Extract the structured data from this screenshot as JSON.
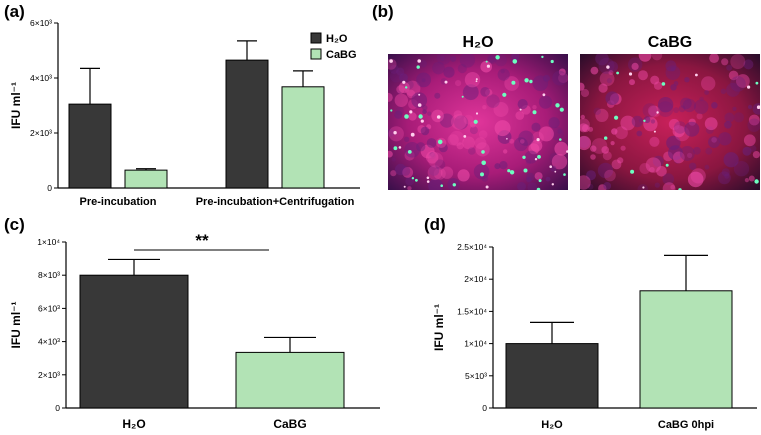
{
  "panels": {
    "a": "(a)",
    "b": "(b)",
    "c": "(c)",
    "d": "(d)"
  },
  "micrographs": {
    "left_title": "H₂O",
    "right_title": "CaBG"
  },
  "colors": {
    "h2o": "#383838",
    "cabg": "#b2e3b5",
    "axis": "#000000"
  },
  "chart_data": [
    {
      "id": "a",
      "type": "bar",
      "categories": [
        "Pre-incubation",
        "Pre-incubation+Centrifugation"
      ],
      "series": [
        {
          "name": "H₂O",
          "values": [
            3050,
            4650
          ],
          "errors": [
            1300,
            700
          ]
        },
        {
          "name": "CaBG",
          "values": [
            650,
            3680
          ],
          "errors": [
            50,
            580
          ]
        }
      ],
      "ylabel": "IFU ml⁻¹",
      "ylim": [
        0,
        6000
      ],
      "yticks": [
        {
          "value": 0,
          "label": "0"
        },
        {
          "value": 2000,
          "label": "2×10³"
        },
        {
          "value": 4000,
          "label": "4×10³"
        },
        {
          "value": 6000,
          "label": "6×10³"
        }
      ],
      "legend": "top-right",
      "grid": false
    },
    {
      "id": "c",
      "type": "bar",
      "categories": [
        "H₂O",
        "CaBG"
      ],
      "values": [
        8000,
        3350
      ],
      "errors": [
        950,
        900
      ],
      "ylabel": "IFU ml⁻¹",
      "ylim": [
        0,
        10000
      ],
      "yticks": [
        {
          "value": 0,
          "label": "0"
        },
        {
          "value": 2000,
          "label": "2×10³"
        },
        {
          "value": 4000,
          "label": "4×10³"
        },
        {
          "value": 6000,
          "label": "6×10³"
        },
        {
          "value": 8000,
          "label": "8×10³"
        },
        {
          "value": 10000,
          "label": "1×10⁴"
        }
      ],
      "significance": "**",
      "grid": false
    },
    {
      "id": "d",
      "type": "bar",
      "categories": [
        "H₂O",
        "CaBG 0hpi"
      ],
      "values": [
        10000,
        18200
      ],
      "errors": [
        3300,
        5500
      ],
      "ylabel": "IFU ml⁻¹",
      "ylim": [
        0,
        25000
      ],
      "yticks": [
        {
          "value": 0,
          "label": "0"
        },
        {
          "value": 5000,
          "label": "5×10³"
        },
        {
          "value": 10000,
          "label": "1×10⁴"
        },
        {
          "value": 15000,
          "label": "1.5×10⁴"
        },
        {
          "value": 20000,
          "label": "2×10⁴"
        },
        {
          "value": 25000,
          "label": "2.5×10⁴"
        }
      ],
      "grid": false
    }
  ]
}
